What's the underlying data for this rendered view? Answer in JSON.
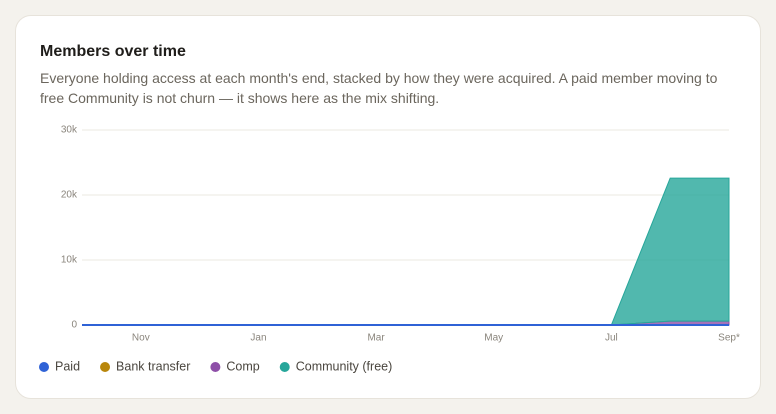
{
  "chart_data": {
    "type": "stacked-area",
    "title": "Members over time",
    "subtitle": "Everyone holding access at each month's end, stacked by how they were acquired. A paid member moving to free Community is not churn — it shows here as the mix shifting.",
    "categories": [
      null,
      "Nov",
      null,
      "Jan",
      null,
      "Mar",
      null,
      "May",
      null,
      "Jul",
      null,
      "Sep*"
    ],
    "series": [
      {
        "name": "Paid",
        "color": "#2f62d6",
        "values": [
          0,
          0,
          0,
          0,
          0,
          0,
          0,
          0,
          0,
          0,
          0,
          0
        ]
      },
      {
        "name": "Bank transfer",
        "color": "#b8860b",
        "values": [
          0,
          0,
          0,
          0,
          0,
          0,
          0,
          0,
          0,
          0,
          0,
          0
        ]
      },
      {
        "name": "Comp",
        "color": "#8e4fa8",
        "values": [
          0,
          0,
          0,
          0,
          0,
          0,
          0,
          0,
          0,
          0,
          600,
          600
        ]
      },
      {
        "name": "Community (free)",
        "color": "#26a69a",
        "values": [
          0,
          0,
          0,
          0,
          0,
          0,
          0,
          0,
          0,
          0,
          22000,
          22000
        ]
      }
    ],
    "ylim": [
      0,
      30000
    ],
    "yticks": [
      0,
      {
        "value": 10000,
        "label": "10k"
      },
      {
        "value": 20000,
        "label": "20k"
      },
      {
        "value": 30000,
        "label": "30k"
      }
    ],
    "grid": true,
    "legend": "bottom"
  }
}
